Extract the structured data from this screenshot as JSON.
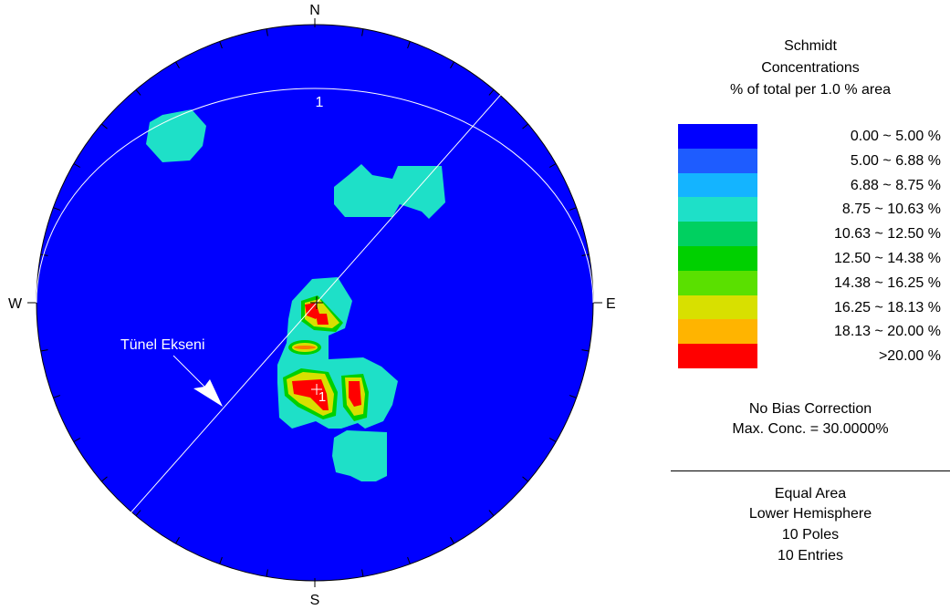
{
  "stereonet": {
    "north": "N",
    "south": "S",
    "east": "E",
    "west": "W",
    "plane_label": "1",
    "pole_label": "1",
    "annotation": "Tünel Ekseni",
    "background_color": "#0000ff",
    "trace_color": "#ffffff",
    "contour_colors": {
      "c1": "#1ee0c8",
      "c2": "#00d000",
      "c3": "#d8e000",
      "c4": "#ff0000"
    }
  },
  "legend": {
    "title_lines": [
      "Schmidt",
      "Concentrations",
      "% of total per 1.0 % area"
    ],
    "bins": [
      {
        "range": "0.00 ~  5.00 %",
        "color": "#0000ff"
      },
      {
        "range": "5.00 ~  6.88 %",
        "color": "#1e5cff"
      },
      {
        "range": "6.88 ~  8.75 %",
        "color": "#14b4ff"
      },
      {
        "range": "8.75 ~ 10.63 %",
        "color": "#1ee0c8"
      },
      {
        "range": "10.63 ~ 12.50 %",
        "color": "#00d060"
      },
      {
        "range": "12.50 ~ 14.38 %",
        "color": "#00d000"
      },
      {
        "range": "14.38 ~ 16.25 %",
        "color": "#5ae000"
      },
      {
        "range": "16.25 ~ 18.13 %",
        "color": "#d8e000"
      },
      {
        "range": "18.13 ~ 20.00 %",
        "color": "#ffb400"
      },
      {
        "range": ">20.00 %",
        "color": "#ff0000"
      }
    ],
    "bias": "No Bias Correction",
    "max_conc": "Max. Conc. = 30.0000%",
    "projection": "Equal Area",
    "hemisphere": "Lower Hemisphere",
    "poles": "10 Poles",
    "entries": "10 Entries"
  }
}
